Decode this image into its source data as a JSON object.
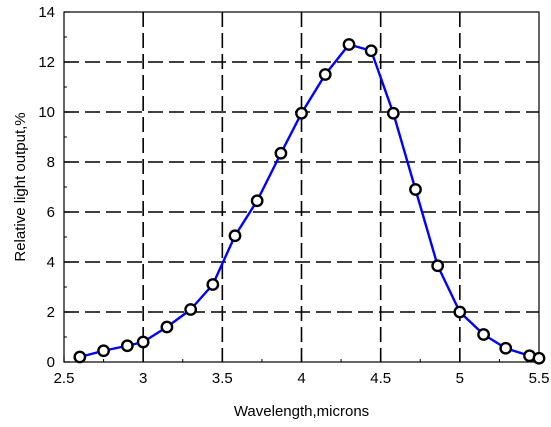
{
  "chart_data": {
    "type": "line",
    "title": "",
    "xlabel": "Wavelength,microns",
    "ylabel": "Relative light output,%",
    "xlim": [
      2.5,
      5.5
    ],
    "ylim": [
      0,
      14
    ],
    "x_ticks": [
      2.5,
      3,
      3.5,
      4,
      4.5,
      5,
      5.5
    ],
    "x_tick_labels": [
      "2.5",
      "3",
      "3.5",
      "4",
      "4.5",
      "5",
      "5.5"
    ],
    "y_ticks": [
      0,
      2,
      4,
      6,
      8,
      10,
      12,
      14
    ],
    "y_tick_labels": [
      "0",
      "2",
      "4",
      "6",
      "8",
      "10",
      "12",
      "14"
    ],
    "grid": true,
    "grid_style": "dashed",
    "line_color": "#0000ff",
    "marker_face_color": "#ffffff",
    "marker_edge_color": "#000000",
    "series": [
      {
        "x": [
          2.6,
          2.75,
          2.9,
          3.0,
          3.15,
          3.3,
          3.44,
          3.58,
          3.72,
          3.87,
          4.0,
          4.15,
          4.3,
          4.44,
          4.58,
          4.72,
          4.86,
          5.0,
          5.15,
          5.29,
          5.44,
          5.5
        ],
        "y": [
          0.2,
          0.45,
          0.65,
          0.8,
          1.4,
          2.1,
          3.1,
          5.05,
          6.45,
          8.35,
          9.95,
          11.5,
          12.7,
          12.45,
          9.95,
          6.9,
          3.85,
          2.0,
          1.1,
          0.55,
          0.25,
          0.15
        ]
      }
    ]
  }
}
